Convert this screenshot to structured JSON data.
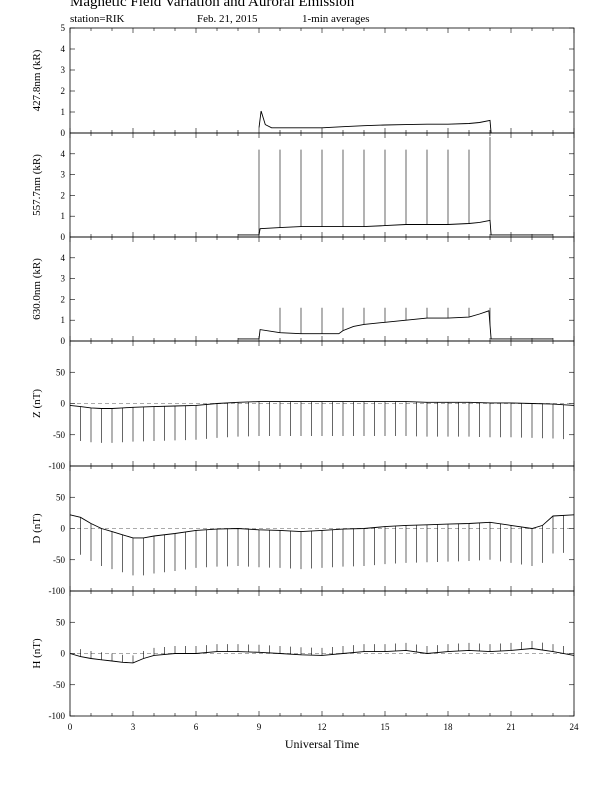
{
  "title": "Magnetic Field Variation and Auroral Emission",
  "station": "station=RIK",
  "date": "Feb. 21, 2015",
  "averaging": "1-min averages",
  "chart_data": [
    {
      "type": "line",
      "ylabel": "427.8nm (kR)",
      "ylim": [
        0,
        5
      ],
      "yticks": [
        0,
        1,
        2,
        3,
        4,
        5
      ],
      "xlim": [
        0,
        24
      ],
      "series": [
        {
          "x": [
            9.0,
            9.1,
            9.3,
            9.6,
            10,
            11,
            12,
            13,
            14,
            15,
            16,
            17,
            18,
            19,
            19.5,
            20.0,
            20.05
          ],
          "values": [
            0.25,
            1.05,
            0.4,
            0.25,
            0.25,
            0.25,
            0.25,
            0.3,
            0.35,
            0.38,
            0.4,
            0.42,
            0.42,
            0.45,
            0.5,
            0.6,
            0.0
          ]
        }
      ]
    },
    {
      "type": "line",
      "ylabel": "557.7nm (kR)",
      "ylim": [
        0,
        5
      ],
      "yticks": [
        0,
        1,
        2,
        3,
        4
      ],
      "xlim": [
        0,
        24
      ],
      "series": [
        {
          "x": [
            8.0,
            9.0,
            9.05,
            10,
            11,
            12,
            13,
            14,
            15,
            16,
            17,
            18,
            19,
            19.5,
            20.0,
            20.05,
            23.0
          ],
          "values": [
            0.1,
            0.1,
            0.4,
            0.45,
            0.5,
            0.5,
            0.5,
            0.5,
            0.55,
            0.6,
            0.6,
            0.6,
            0.65,
            0.7,
            0.8,
            0.1,
            0.1
          ]
        }
      ],
      "spikes": {
        "x": [
          9,
          10,
          11,
          12,
          13,
          14,
          15,
          16,
          17,
          18,
          19,
          20
        ],
        "top": [
          4.2,
          4.2,
          4.2,
          4.2,
          4.2,
          4.2,
          4.2,
          4.2,
          4.2,
          4.2,
          4.2,
          4.8
        ]
      }
    },
    {
      "type": "line",
      "ylabel": "630.0nm (kR)",
      "ylim": [
        0,
        5
      ],
      "yticks": [
        0,
        1,
        2,
        3,
        4
      ],
      "xlim": [
        0,
        24
      ],
      "series": [
        {
          "x": [
            8.0,
            9.0,
            9.05,
            10,
            11,
            12,
            12.8,
            13,
            13.5,
            14,
            15,
            16,
            17,
            18,
            19,
            19.5,
            19.95,
            20.05,
            23.0
          ],
          "values": [
            0.1,
            0.1,
            0.55,
            0.4,
            0.35,
            0.35,
            0.35,
            0.5,
            0.7,
            0.8,
            0.9,
            1.0,
            1.1,
            1.1,
            1.15,
            1.3,
            1.45,
            0.1,
            0.1
          ]
        }
      ],
      "spikes": {
        "x": [
          10,
          11,
          12,
          13,
          14,
          15,
          16,
          17,
          18,
          19,
          20
        ],
        "top": [
          1.6,
          1.6,
          1.6,
          1.6,
          1.6,
          1.6,
          1.6,
          1.6,
          1.6,
          1.6,
          1.6
        ]
      }
    },
    {
      "type": "line",
      "ylabel": "Z (nT)",
      "ylim": [
        -100,
        100
      ],
      "yticks": [
        -100,
        -50,
        0,
        50
      ],
      "xlim": [
        0,
        24
      ],
      "baseline": 0,
      "series": [
        {
          "x": [
            0,
            0.5,
            1,
            1.5,
            2,
            2.5,
            3,
            4,
            5,
            6,
            7,
            8,
            9,
            10,
            11,
            12,
            13,
            14,
            15,
            16,
            17,
            18,
            19,
            20,
            21,
            22,
            23,
            24
          ],
          "values": [
            -3,
            -5,
            -7,
            -8,
            -8,
            -7,
            -6,
            -5,
            -4,
            -3,
            0,
            2,
            3,
            3,
            3,
            3,
            3,
            3,
            3,
            3,
            2,
            2,
            2,
            1,
            1,
            0,
            -1,
            -3
          ]
        }
      ],
      "spikes": {
        "interval": 0.5,
        "depth": -55
      }
    },
    {
      "type": "line",
      "ylabel": "D (nT)",
      "ylim": [
        -100,
        100
      ],
      "yticks": [
        -100,
        -50,
        0,
        50
      ],
      "xlim": [
        0,
        24
      ],
      "baseline": 0,
      "series": [
        {
          "x": [
            0,
            0.5,
            1,
            1.5,
            2,
            2.5,
            3,
            3.5,
            4,
            5,
            6,
            7,
            8,
            9,
            10,
            11,
            12,
            13,
            14,
            15,
            16,
            17,
            18,
            19,
            20,
            21,
            22,
            22.5,
            23,
            24
          ],
          "values": [
            22,
            18,
            8,
            0,
            -5,
            -10,
            -15,
            -15,
            -12,
            -8,
            -3,
            -1,
            0,
            -2,
            -3,
            -5,
            -3,
            -1,
            0,
            3,
            5,
            6,
            7,
            8,
            10,
            5,
            0,
            5,
            20,
            22
          ]
        }
      ],
      "spikes": {
        "interval": 0.5,
        "depth": -60
      }
    },
    {
      "type": "line",
      "ylabel": "H (nT)",
      "ylim": [
        -100,
        100
      ],
      "yticks": [
        -100,
        -50,
        0,
        50
      ],
      "xlim": [
        0,
        24
      ],
      "xticks": [
        0,
        3,
        6,
        9,
        12,
        15,
        18,
        21,
        24
      ],
      "xlabel": "Universal Time",
      "baseline": 0,
      "series": [
        {
          "x": [
            0,
            0.5,
            1,
            1.5,
            2,
            2.5,
            3,
            3.5,
            4,
            5,
            6,
            7,
            8,
            9,
            10,
            11,
            12,
            13,
            14,
            15,
            16,
            17,
            18,
            19,
            20,
            21,
            22,
            23,
            24
          ],
          "values": [
            0,
            -5,
            -8,
            -10,
            -12,
            -14,
            -15,
            -8,
            -3,
            0,
            0,
            3,
            3,
            2,
            0,
            -2,
            -3,
            0,
            3,
            3,
            5,
            0,
            3,
            5,
            3,
            5,
            8,
            3,
            -3
          ]
        }
      ],
      "spikes": {
        "interval": 0.5,
        "depth": 12
      }
    }
  ]
}
